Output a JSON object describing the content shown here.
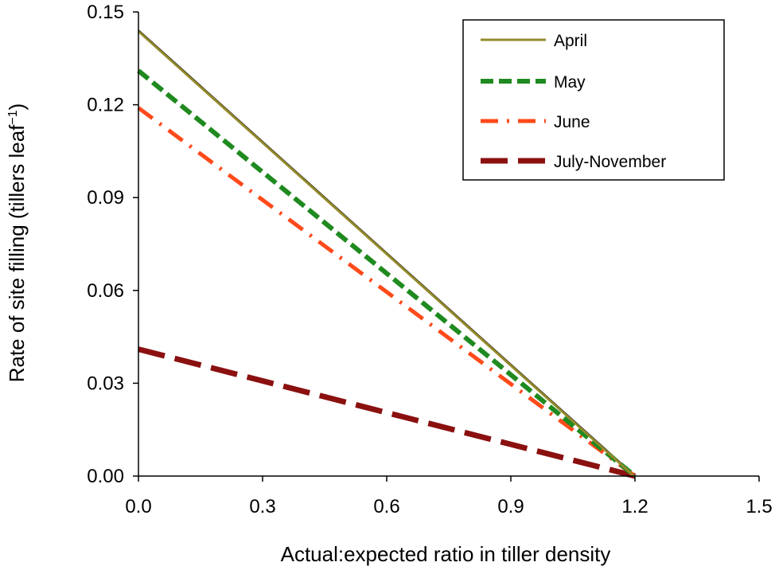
{
  "chart_data": {
    "type": "line",
    "title": "",
    "xlabel": "Actual:expected ratio in tiller density",
    "ylabel": "Rate of site filling (tillers leaf",
    "ylabel_superscript": "−1",
    "ylabel_suffix": ")",
    "xlim": [
      0,
      1.5
    ],
    "ylim": [
      0,
      0.15
    ],
    "xticks": [
      0.0,
      0.3,
      0.6,
      0.9,
      1.2,
      1.5
    ],
    "yticks": [
      0.0,
      0.03,
      0.06,
      0.09,
      0.12,
      0.15
    ],
    "xtick_labels": [
      "0.0",
      "0.3",
      "0.6",
      "0.9",
      "1.2",
      "1.5"
    ],
    "ytick_labels": [
      "0.00",
      "0.03",
      "0.06",
      "0.09",
      "0.12",
      "0.15"
    ],
    "grid": false,
    "legend_position": "top-right",
    "series": [
      {
        "name": "April",
        "style": "solid",
        "color": "#948a2c",
        "x": [
          0.0,
          1.2
        ],
        "y": [
          0.144,
          0.0
        ]
      },
      {
        "name": "May",
        "style": "dashed",
        "color": "#1f8a1f",
        "x": [
          0.0,
          1.2
        ],
        "y": [
          0.131,
          0.0
        ]
      },
      {
        "name": "June",
        "style": "dash-dot",
        "color": "#ff4a1a",
        "x": [
          0.0,
          1.2
        ],
        "y": [
          0.119,
          0.0
        ]
      },
      {
        "name": "July-November",
        "style": "long-dash",
        "color": "#8b1010",
        "x": [
          0.0,
          1.2
        ],
        "y": [
          0.041,
          0.0
        ]
      }
    ],
    "extra_lines": [
      {
        "name": "April-outline",
        "color": "#000000",
        "x": [
          0.0,
          1.2
        ],
        "y": [
          0.144,
          0.0
        ]
      }
    ]
  }
}
